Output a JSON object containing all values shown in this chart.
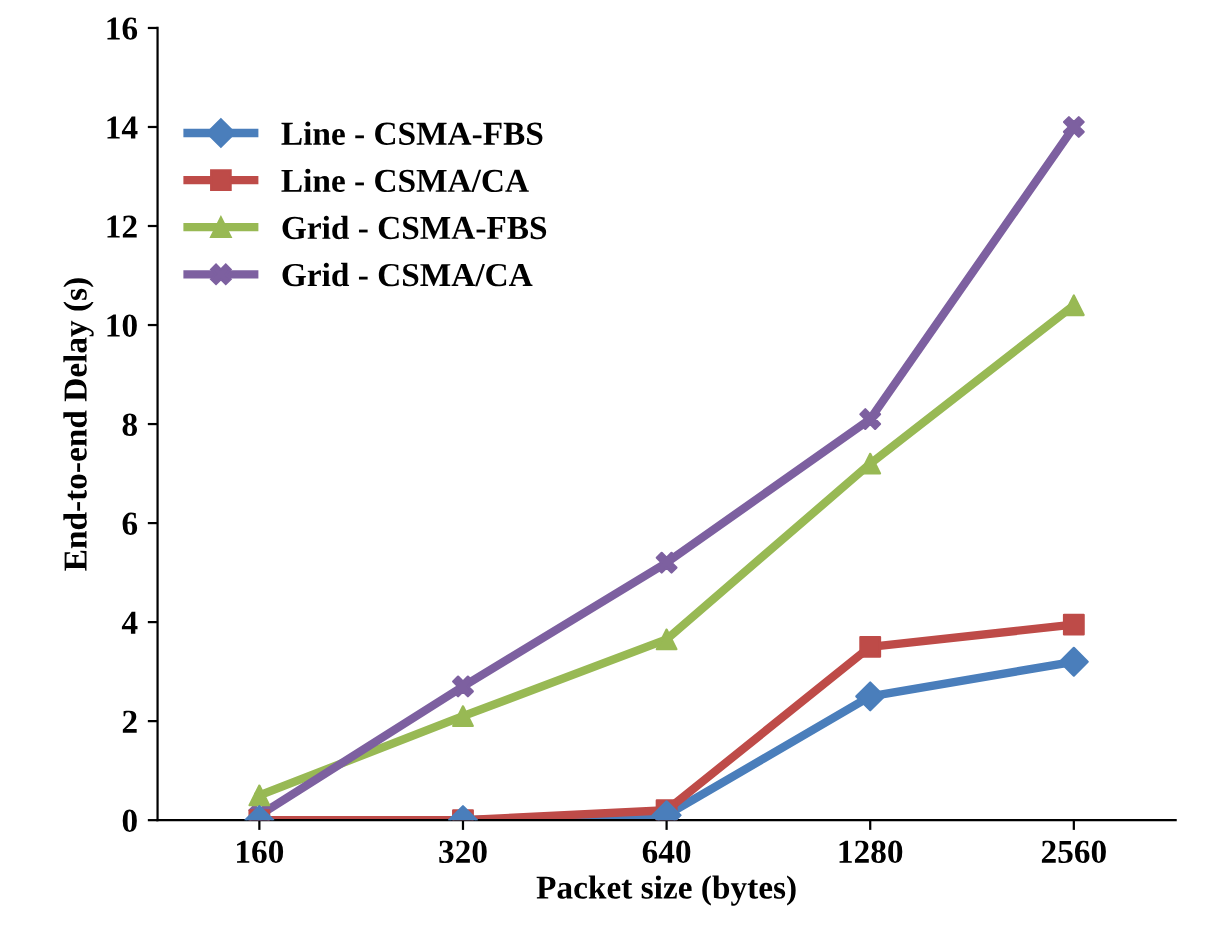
{
  "chart_data": {
    "type": "line",
    "xlabel": "Packet size (bytes)",
    "ylabel": "End-to-end Delay (s)",
    "categories": [
      "160",
      "320",
      "640",
      "1280",
      "2560"
    ],
    "series": [
      {
        "name": "Line - CSMA-FBS",
        "color": "#4a7ebb",
        "marker": "diamond",
        "values": [
          0.0,
          0.0,
          0.1,
          2.5,
          3.2
        ]
      },
      {
        "name": "Line - CSMA/CA",
        "color": "#be4b48",
        "marker": "square",
        "values": [
          0.0,
          0.0,
          0.2,
          3.5,
          3.95
        ]
      },
      {
        "name": "Grid - CSMA-FBS",
        "color": "#98b954",
        "marker": "triangle",
        "values": [
          0.5,
          2.1,
          3.65,
          7.2,
          10.4
        ]
      },
      {
        "name": "Grid - CSMA/CA",
        "color": "#7d60a0",
        "marker": "cross",
        "values": [
          0.1,
          2.7,
          5.2,
          8.1,
          14.0
        ]
      }
    ],
    "ylim": [
      0,
      16
    ],
    "yticks": [
      0,
      2,
      4,
      6,
      8,
      10,
      12,
      14,
      16
    ],
    "grid": false,
    "legend": "top left",
    "line_style": "solid"
  }
}
